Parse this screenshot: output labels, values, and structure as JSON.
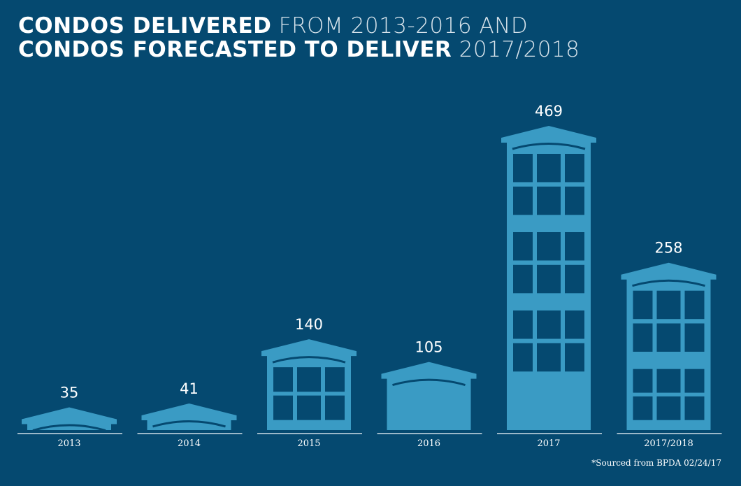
{
  "chart_data": {
    "type": "bar",
    "title_bold_1": "CONDOS DELIVERED",
    "title_light_1": " FROM 2013-2016 AND",
    "title_bold_2": "CONDOS FORECASTED TO DELIVER",
    "title_light_2": " 2017/2018",
    "categories": [
      "2013",
      "2014",
      "2015",
      "2016",
      "2017",
      "2017/2018"
    ],
    "values": [
      35,
      41,
      140,
      105,
      469,
      258
    ],
    "value_labels": [
      "35",
      "41",
      "140",
      "105",
      "469",
      "258"
    ],
    "ylim": [
      0,
      469
    ],
    "xlabel": "",
    "ylabel": "",
    "footnote": "*Sourced from BPDA 02/24/17",
    "colors": {
      "background": "#054970",
      "building": "#3a9bc4",
      "text": "#ffffff"
    }
  }
}
